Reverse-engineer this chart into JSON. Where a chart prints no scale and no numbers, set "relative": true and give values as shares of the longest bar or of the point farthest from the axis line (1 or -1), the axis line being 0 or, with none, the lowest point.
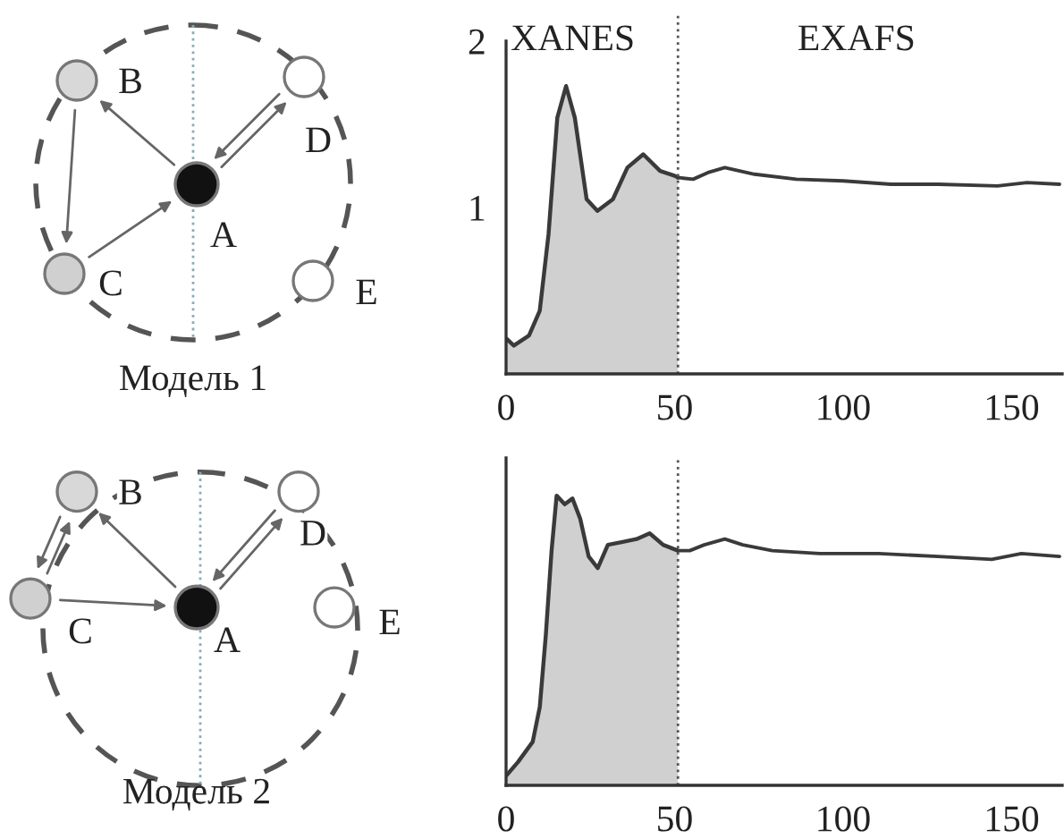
{
  "chart_data": [
    {
      "type": "other",
      "title": "Модель 1",
      "annotations": [
        "A",
        "B",
        "C",
        "D",
        "E"
      ]
    },
    {
      "type": "line",
      "xlim": [
        0,
        165
      ],
      "xticks": [
        0,
        50,
        100,
        150
      ],
      "ylim": [
        0,
        2
      ],
      "yticks": [
        1,
        2
      ],
      "ref_lines": [
        {
          "axis": "x",
          "value": 51,
          "line_style": "dotted",
          "color": "#555555"
        }
      ],
      "annotations": [
        "XANES",
        "EXAFS"
      ],
      "series": [
        {
          "type": "area",
          "color": "#d0d0d0",
          "x": [
            0.2,
            2.3,
            6.8,
            10.0,
            12.6,
            15.2,
            17.8,
            20.4,
            23.9,
            27.1,
            31.7,
            36.0,
            40.7,
            45.7,
            50.1,
            51
          ],
          "values": [
            0.21,
            0.17,
            0.23,
            0.38,
            0.84,
            1.54,
            1.73,
            1.54,
            1.05,
            0.98,
            1.05,
            1.24,
            1.32,
            1.22,
            1.19,
            1.18
          ]
        },
        {
          "type": "line",
          "color": "#3a3a3a",
          "x": [
            51,
            55.5,
            59.9,
            64.9,
            73.7,
            86.1,
            100.1,
            114.2,
            128.2,
            145.8,
            154.6,
            164.2
          ],
          "values": [
            1.18,
            1.17,
            1.21,
            1.24,
            1.2,
            1.17,
            1.16,
            1.14,
            1.14,
            1.13,
            1.15,
            1.14
          ]
        }
      ]
    },
    {
      "type": "other",
      "title": "Модель 2",
      "annotations": [
        "A",
        "B",
        "C",
        "D",
        "E"
      ]
    },
    {
      "type": "line",
      "relative": true,
      "xlim": [
        0,
        165
      ],
      "xticks": [
        0,
        50,
        100,
        150
      ],
      "ref_lines": [
        {
          "axis": "x",
          "value": 51,
          "line_style": "dotted",
          "color": "#555555"
        }
      ],
      "series": [
        {
          "type": "area",
          "color": "#d0d0d0",
          "x": [
            0.2,
            3.5,
            7.9,
            10.0,
            11.8,
            13.5,
            15.0,
            17.4,
            19.7,
            22.0,
            24.5,
            27.2,
            30.2,
            34.6,
            38.7,
            42.6,
            46.6,
            51
          ],
          "values": [
            0.035,
            0.08,
            0.15,
            0.27,
            0.52,
            0.81,
            1.0,
            0.97,
            0.99,
            0.92,
            0.79,
            0.75,
            0.83,
            0.84,
            0.85,
            0.87,
            0.83,
            0.81
          ]
        },
        {
          "type": "line",
          "color": "#3a3a3a",
          "x": [
            51,
            54.5,
            58.8,
            64.9,
            70.2,
            79.0,
            93.1,
            110.6,
            128.2,
            144.1,
            152.9,
            164.2
          ],
          "values": [
            0.81,
            0.81,
            0.83,
            0.85,
            0.83,
            0.81,
            0.8,
            0.8,
            0.79,
            0.78,
            0.8,
            0.79
          ]
        }
      ]
    }
  ]
}
